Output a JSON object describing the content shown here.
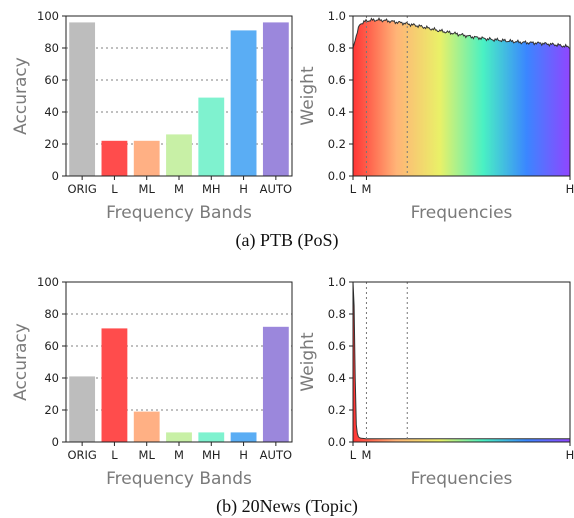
{
  "captions": {
    "a": "(a) PTB (PoS)",
    "b": "(b) 20News (Topic)"
  },
  "chart_data": [
    {
      "type": "bar",
      "panel": "a-left",
      "categories": [
        "ORIG",
        "L",
        "ML",
        "M",
        "MH",
        "H",
        "AUTO"
      ],
      "values": [
        96,
        22,
        22,
        26,
        49,
        91,
        96
      ],
      "colors": [
        "#bdbdbd",
        "#ff4c4c",
        "#ffb084",
        "#c8f0a6",
        "#7ff2cf",
        "#5aadf4",
        "#9b87dc"
      ],
      "xlabel": "Frequency Bands",
      "ylabel": "Accuracy",
      "ylim": [
        0,
        100
      ],
      "yticks": [
        0,
        20,
        40,
        60,
        80,
        100
      ],
      "grid": "horizontal dotted at 20, 40, 60, 80"
    },
    {
      "type": "area",
      "panel": "a-right",
      "x": [
        0,
        8,
        16,
        24,
        32,
        40,
        60,
        80,
        100,
        120,
        140,
        160,
        180,
        200,
        220,
        240,
        256
      ],
      "y": [
        0.8,
        0.95,
        0.97,
        0.975,
        0.975,
        0.97,
        0.955,
        0.935,
        0.91,
        0.89,
        0.87,
        0.855,
        0.845,
        0.835,
        0.83,
        0.82,
        0.805
      ],
      "fill": "rainbow gradient red to violet across frequencies",
      "xlabel": "Frequencies",
      "ylabel": "Weight",
      "ylim": [
        0.0,
        1.0
      ],
      "yticks": [
        "0.0",
        "0.2",
        "0.4",
        "0.6",
        "0.8",
        "1.0"
      ],
      "xticks": [
        "L",
        "M",
        "H"
      ],
      "vlines": "dotted at band boundaries"
    },
    {
      "type": "bar",
      "panel": "b-left",
      "categories": [
        "ORIG",
        "L",
        "ML",
        "M",
        "MH",
        "H",
        "AUTO"
      ],
      "values": [
        41,
        71,
        19,
        6,
        6,
        6,
        72
      ],
      "colors": [
        "#bdbdbd",
        "#ff4c4c",
        "#ffb084",
        "#c8f0a6",
        "#7ff2cf",
        "#5aadf4",
        "#9b87dc"
      ],
      "xlabel": "Frequency Bands",
      "ylabel": "Accuracy",
      "ylim": [
        0,
        100
      ],
      "yticks": [
        0,
        20,
        40,
        60,
        80,
        100
      ],
      "grid": "horizontal dotted at 20, 40, 60, 80"
    },
    {
      "type": "area",
      "panel": "b-right",
      "x": [
        0,
        1,
        2,
        3,
        4,
        6,
        8,
        12,
        16,
        32,
        64,
        128,
        256
      ],
      "y": [
        1.0,
        0.95,
        0.6,
        0.25,
        0.08,
        0.035,
        0.025,
        0.022,
        0.02,
        0.02,
        0.02,
        0.02,
        0.02
      ],
      "fill": "rainbow gradient red to violet across frequencies",
      "xlabel": "Frequencies",
      "ylabel": "Weight",
      "ylim": [
        0.0,
        1.0
      ],
      "yticks": [
        "0.0",
        "0.2",
        "0.4",
        "0.6",
        "0.8",
        "1.0"
      ],
      "xticks": [
        "L",
        "M",
        "H"
      ],
      "vlines": "dotted at band boundaries"
    }
  ]
}
